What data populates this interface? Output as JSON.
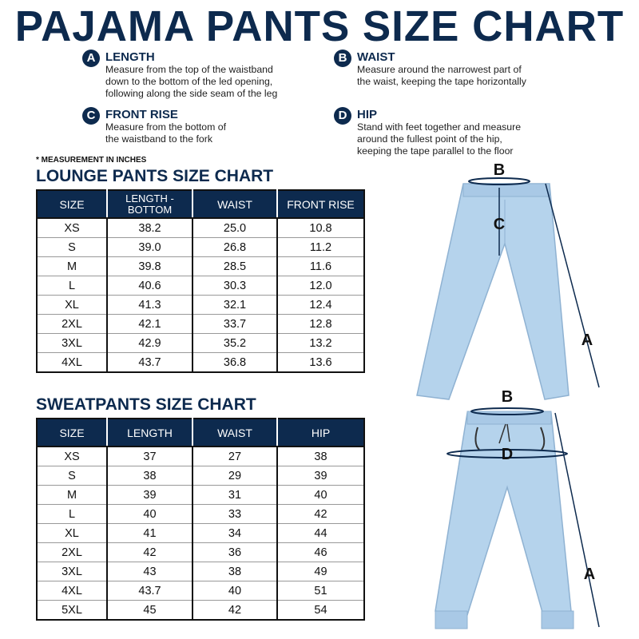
{
  "title": "PAJAMA PANTS SIZE CHART",
  "measurements": [
    {
      "letter": "A",
      "title": "LENGTH",
      "desc": "Measure from the top of the waistband\ndown to the bottom of the led opening,\nfollowing along the side seam of the leg"
    },
    {
      "letter": "B",
      "title": "WAIST",
      "desc": "Measure around the narrowest part of\nthe waist, keeping the tape horizontally"
    },
    {
      "letter": "C",
      "title": "FRONT RISE",
      "desc": "Measure from the bottom of\nthe waistband to the fork"
    },
    {
      "letter": "D",
      "title": "HIP",
      "desc": "Stand with feet together and measure\naround the fullest point of the hip,\nkeeping the tape parallel to the floor"
    }
  ],
  "note": "* MEASUREMENT IN INCHES",
  "lounge": {
    "title": "LOUNGE PANTS SIZE CHART",
    "headers": [
      "SIZE",
      "LENGTH - BOTTOM",
      "WAIST",
      "FRONT RISE"
    ],
    "rows": [
      [
        "XS",
        "38.2",
        "25.0",
        "10.8"
      ],
      [
        "S",
        "39.0",
        "26.8",
        "11.2"
      ],
      [
        "M",
        "39.8",
        "28.5",
        "11.6"
      ],
      [
        "L",
        "40.6",
        "30.3",
        "12.0"
      ],
      [
        "XL",
        "41.3",
        "32.1",
        "12.4"
      ],
      [
        "2XL",
        "42.1",
        "33.7",
        "12.8"
      ],
      [
        "3XL",
        "42.9",
        "35.2",
        "13.2"
      ],
      [
        "4XL",
        "43.7",
        "36.8",
        "13.6"
      ]
    ]
  },
  "sweat": {
    "title": "SWEATPANTS SIZE CHART",
    "headers": [
      "SIZE",
      "LENGTH",
      "WAIST",
      "HIP"
    ],
    "rows": [
      [
        "XS",
        "37",
        "27",
        "38"
      ],
      [
        "S",
        "38",
        "29",
        "39"
      ],
      [
        "M",
        "39",
        "31",
        "40"
      ],
      [
        "L",
        "40",
        "33",
        "42"
      ],
      [
        "XL",
        "41",
        "34",
        "44"
      ],
      [
        "2XL",
        "42",
        "36",
        "46"
      ],
      [
        "3XL",
        "43",
        "38",
        "49"
      ],
      [
        "4XL",
        "43.7",
        "40",
        "51"
      ],
      [
        "5XL",
        "45",
        "42",
        "54"
      ]
    ]
  },
  "diagram_labels": {
    "lounge": [
      "B",
      "C",
      "A"
    ],
    "sweat": [
      "B",
      "D",
      "A"
    ]
  },
  "colors": {
    "navy": "#0d2a4e",
    "pants": "#b5d3ec"
  }
}
